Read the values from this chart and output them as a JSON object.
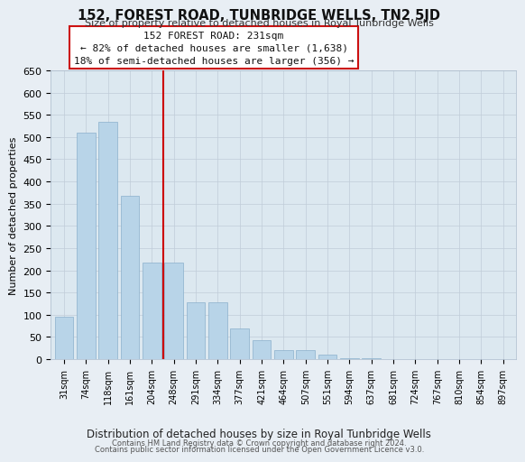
{
  "title": "152, FOREST ROAD, TUNBRIDGE WELLS, TN2 5JD",
  "subtitle": "Size of property relative to detached houses in Royal Tunbridge Wells",
  "xlabel": "Distribution of detached houses by size in Royal Tunbridge Wells",
  "ylabel": "Number of detached properties",
  "bar_labels": [
    "31sqm",
    "74sqm",
    "118sqm",
    "161sqm",
    "204sqm",
    "248sqm",
    "291sqm",
    "334sqm",
    "377sqm",
    "421sqm",
    "464sqm",
    "507sqm",
    "551sqm",
    "594sqm",
    "637sqm",
    "681sqm",
    "724sqm",
    "767sqm",
    "810sqm",
    "854sqm",
    "897sqm"
  ],
  "bar_values": [
    95,
    510,
    535,
    368,
    218,
    218,
    128,
    128,
    70,
    43,
    20,
    20,
    10,
    2,
    2,
    1,
    1,
    1,
    1,
    1,
    1
  ],
  "bar_color": "#b8d4e8",
  "vline_x_index": 5,
  "vline_color": "#cc0000",
  "ylim": [
    0,
    650
  ],
  "yticks": [
    0,
    50,
    100,
    150,
    200,
    250,
    300,
    350,
    400,
    450,
    500,
    550,
    600,
    650
  ],
  "annotation_title": "152 FOREST ROAD: 231sqm",
  "annotation_line1": "← 82% of detached houses are smaller (1,638)",
  "annotation_line2": "18% of semi-detached houses are larger (356) →",
  "footer_line1": "Contains HM Land Registry data © Crown copyright and database right 2024.",
  "footer_line2": "Contains public sector information licensed under the Open Government Licence v3.0.",
  "bg_color": "#e8eef4",
  "plot_bg_color": "#dce8f0"
}
